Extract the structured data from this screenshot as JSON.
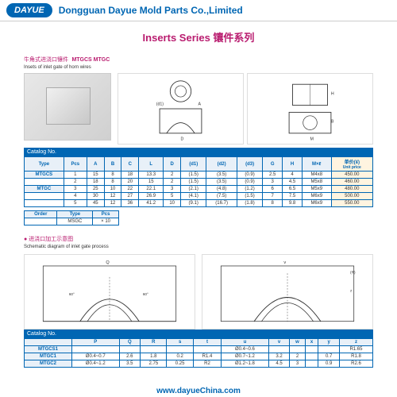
{
  "header": {
    "logo": "DAYUE",
    "company": "Dongguan Dayue Mold Parts Co.,Limited"
  },
  "title": "Inserts Series 镶件系列",
  "section1": {
    "zh": "牛角式进浇口镶件",
    "codes": "MTGCS MTGC",
    "en": "Insets of inlet gate of horn wires"
  },
  "table1": {
    "catalog": "Catalog No.",
    "headers": [
      "Type",
      "Pcs",
      "A",
      "B",
      "C",
      "L",
      "D",
      "(d1)",
      "(d2)",
      "(d3)",
      "G",
      "H",
      "M×ℓ",
      "单价(¥)"
    ],
    "price_sub": "Unit price",
    "rows": [
      [
        "MTGCS",
        "1",
        "15",
        "8",
        "18",
        "13.3",
        "2",
        "(1.5)",
        "(3.5)",
        "(0.9)",
        "2.5",
        "4",
        "M4x8",
        "450.00"
      ],
      [
        "",
        "2",
        "18",
        "8",
        "20",
        "15",
        "2",
        "(1.5)",
        "(3.5)",
        "(0.9)",
        "3",
        "4.5",
        "M5x8",
        "460.00"
      ],
      [
        "MTGC",
        "3",
        "25",
        "10",
        "22",
        "22.1",
        "3",
        "(2.1)",
        "(4.8)",
        "(1.2)",
        "6",
        "6.5",
        "M5x9",
        "480.00"
      ],
      [
        "",
        "4",
        "30",
        "12",
        "27",
        "26.9",
        "5",
        "(4.1)",
        "(7.5)",
        "(1.5)",
        "7",
        "7.5",
        "M6x9",
        "500.00"
      ],
      [
        "",
        "5",
        "45",
        "12",
        "36",
        "41.2",
        "10",
        "(9.1)",
        "(16.7)",
        "(1.8)",
        "8",
        "9.8",
        "M6x9",
        "550.00"
      ]
    ]
  },
  "order": {
    "label": "Order",
    "h1": "Type",
    "h2": "Pcs",
    "v1": "MSGC",
    "v2": "× 10"
  },
  "section2": {
    "bullet": "● 进浇口加工示意图",
    "en": "Schematic diagram of inlet gate process"
  },
  "table2": {
    "catalog": "Catalog No.",
    "headers": [
      "",
      "P",
      "Q",
      "R",
      "s",
      "t",
      "u",
      "v",
      "w",
      "x",
      "y",
      "z"
    ],
    "rows": [
      [
        "MTGCS1",
        "",
        "",
        "",
        "",
        "",
        "Ø0.4~0.6",
        "",
        "",
        "",
        "",
        "R1.65"
      ],
      [
        "MTGC1",
        "Ø0.4~0.7",
        "2.6",
        "1.8",
        "0.2",
        "R1.4",
        "Ø0.7~1.2",
        "3.2",
        "2",
        "",
        "0.7",
        "R1.8"
      ],
      [
        "MTGC2",
        "Ø0.4~1.2",
        "3.5",
        "2.75",
        "0.25",
        "R2",
        "Ø1.2~1.8",
        "4.5",
        "3",
        "",
        "0.9",
        "R2.6"
      ]
    ]
  },
  "footer": "www.dayueChina.com",
  "colors": {
    "brand": "#0066b3",
    "accent": "#b91c6f",
    "grid": "#0066b3"
  }
}
